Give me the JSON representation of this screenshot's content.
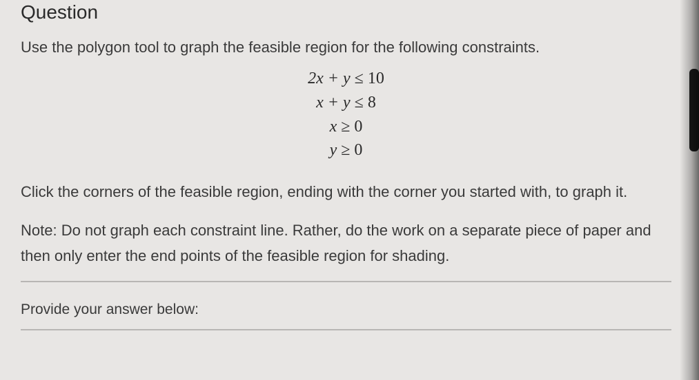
{
  "title": "Question",
  "instruction": "Use the polygon tool to graph the feasible region for the following constraints.",
  "constraints": [
    {
      "lhs": "2x + y",
      "op": "≤",
      "rhs": "10"
    },
    {
      "lhs": "x + y",
      "op": "≤",
      "rhs": "8"
    },
    {
      "lhs": "x",
      "op": "≥",
      "rhs": "0"
    },
    {
      "lhs": "y",
      "op": "≥",
      "rhs": "0"
    }
  ],
  "para1": "Click the corners of the feasible region, ending with the corner you started with, to graph it.",
  "para2": "Note: Do not graph each constraint line. Rather, do the work on a separate piece of paper and then only enter the end points of the feasible region for shading.",
  "answer_label": "Provide your answer below:",
  "colors": {
    "background": "#e8e6e4",
    "text": "#3a3a3a",
    "title": "#2a2a2a",
    "divider": "#b8b6b4",
    "scroll": "#1a1a1a"
  },
  "typography": {
    "title_fontsize": 28,
    "body_fontsize": 22,
    "math_fontsize": 24,
    "body_font": "Arial",
    "math_font": "Times New Roman"
  }
}
